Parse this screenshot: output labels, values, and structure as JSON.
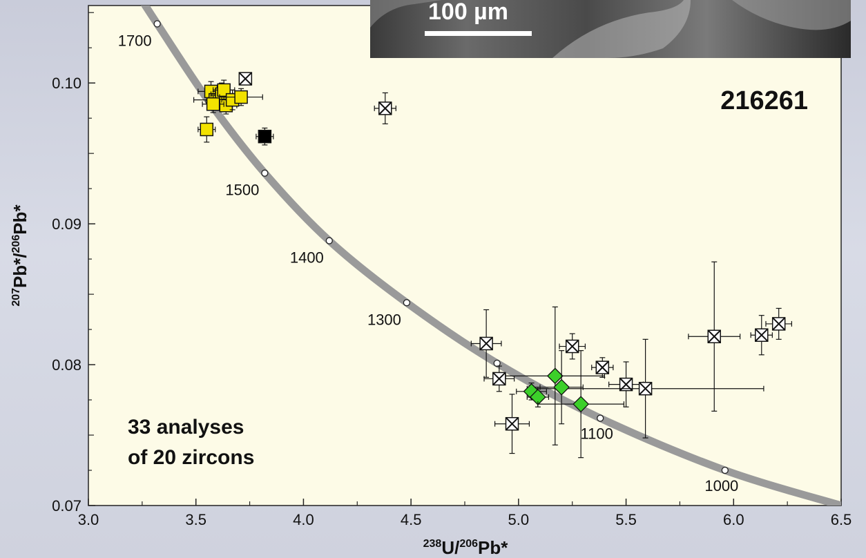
{
  "chart_data": {
    "type": "scatter",
    "title": "",
    "sample_id": "216261",
    "note_lines": [
      "33 analyses",
      "of 20 zircons"
    ],
    "scale_bar_label": "100 µm",
    "xlabel": {
      "pre1": "238",
      "mid1": "U/",
      "pre2": "206",
      "mid2": "Pb*"
    },
    "ylabel": {
      "pre1": "207",
      "mid1": "Pb*/",
      "pre2": "206",
      "mid2": "Pb*"
    },
    "xlim": [
      3.0,
      6.5
    ],
    "ylim": [
      0.07,
      0.1055
    ],
    "x_ticks": [
      "3.0",
      "3.5",
      "4.0",
      "4.5",
      "5.0",
      "5.5",
      "6.0",
      "6.5"
    ],
    "y_ticks": [
      "0.07",
      "0.08",
      "0.09",
      "0.10"
    ],
    "concordia_labels": [
      {
        "age": "1700",
        "x": 3.32,
        "y": 0.1042
      },
      {
        "age": "1500",
        "x": 3.82,
        "y": 0.0936
      },
      {
        "age": "1400",
        "x": 4.12,
        "y": 0.0888
      },
      {
        "age": "1300",
        "x": 4.48,
        "y": 0.0844
      },
      {
        "age": "1100",
        "x": 5.38,
        "y": 0.0762
      },
      {
        "age": "1000",
        "x": 5.96,
        "y": 0.0725
      }
    ],
    "concordia_points": [
      {
        "x": 3.32,
        "y": 0.1042
      },
      {
        "x": 3.56,
        "y": 0.0987
      },
      {
        "x": 3.82,
        "y": 0.0936
      },
      {
        "x": 4.12,
        "y": 0.0888
      },
      {
        "x": 4.48,
        "y": 0.0844
      },
      {
        "x": 4.9,
        "y": 0.0801
      },
      {
        "x": 5.38,
        "y": 0.0762
      },
      {
        "x": 5.96,
        "y": 0.0725
      }
    ],
    "concordia_curve": [
      {
        "x": 3.18,
        "y": 0.1075
      },
      {
        "x": 3.32,
        "y": 0.1042
      },
      {
        "x": 3.56,
        "y": 0.0987
      },
      {
        "x": 3.82,
        "y": 0.0936
      },
      {
        "x": 4.12,
        "y": 0.0888
      },
      {
        "x": 4.48,
        "y": 0.0844
      },
      {
        "x": 4.9,
        "y": 0.0801
      },
      {
        "x": 5.38,
        "y": 0.0762
      },
      {
        "x": 5.96,
        "y": 0.0725
      },
      {
        "x": 6.5,
        "y": 0.07
      }
    ],
    "series": [
      {
        "kind": "yellow-square",
        "color": "#f2e200",
        "points": [
          {
            "x": 3.55,
            "y": 0.0967,
            "xe": 0.04,
            "ye": 0.0009
          },
          {
            "x": 3.57,
            "y": 0.0994,
            "xe": 0.06,
            "ye": 0.0007
          },
          {
            "x": 3.59,
            "y": 0.0988,
            "xe": 0.1,
            "ye": 0.0006
          },
          {
            "x": 3.62,
            "y": 0.0992,
            "xe": 0.05,
            "ye": 0.0008
          },
          {
            "x": 3.63,
            "y": 0.0995,
            "xe": 0.05,
            "ye": 0.0007
          },
          {
            "x": 3.64,
            "y": 0.0984,
            "xe": 0.05,
            "ye": 0.0006
          },
          {
            "x": 3.67,
            "y": 0.0988,
            "xe": 0.05,
            "ye": 0.0007
          },
          {
            "x": 3.71,
            "y": 0.099,
            "xe": 0.1,
            "ye": 0.0006
          },
          {
            "x": 3.58,
            "y": 0.0985,
            "xe": 0.05,
            "ye": 0.0006
          }
        ]
      },
      {
        "kind": "black-square",
        "color": "#000000",
        "points": [
          {
            "x": 3.82,
            "y": 0.0962,
            "xe": 0.04,
            "ye": 0.0006
          }
        ]
      },
      {
        "kind": "crossed-square",
        "color": "#ffffff",
        "points": [
          {
            "x": 3.73,
            "y": 0.1003,
            "xe": 0.0,
            "ye": 0.0
          },
          {
            "x": 4.38,
            "y": 0.0982,
            "xe": 0.05,
            "ye": 0.0011
          },
          {
            "x": 4.85,
            "y": 0.0815,
            "xe": 0.07,
            "ye": 0.0024
          },
          {
            "x": 4.91,
            "y": 0.079,
            "xe": 0.07,
            "ye": 0.0009
          },
          {
            "x": 4.97,
            "y": 0.0758,
            "xe": 0.08,
            "ye": 0.0021
          },
          {
            "x": 5.25,
            "y": 0.0813,
            "xe": 0.06,
            "ye": 0.0009
          },
          {
            "x": 5.39,
            "y": 0.0798,
            "xe": 0.05,
            "ye": 0.0007
          },
          {
            "x": 5.5,
            "y": 0.0786,
            "xe": 0.08,
            "ye": 0.0016
          },
          {
            "x": 5.59,
            "y": 0.0783,
            "xe": 0.55,
            "ye": 0.0035
          },
          {
            "x": 5.91,
            "y": 0.082,
            "xe": 0.12,
            "ye": 0.0053
          },
          {
            "x": 6.13,
            "y": 0.0821,
            "xe": 0.05,
            "ye": 0.0014
          },
          {
            "x": 6.21,
            "y": 0.0829,
            "xe": 0.06,
            "ye": 0.0011
          }
        ]
      },
      {
        "kind": "green-diamond",
        "color": "#3ccf2a",
        "points": [
          {
            "x": 5.06,
            "y": 0.0781,
            "xe": 0.07,
            "ye": 0.0006
          },
          {
            "x": 5.09,
            "y": 0.0777,
            "xe": 0.05,
            "ye": 0.0007
          },
          {
            "x": 5.17,
            "y": 0.0792,
            "xe": 0.23,
            "ye": 0.0049
          },
          {
            "x": 5.2,
            "y": 0.0784,
            "xe": 0.1,
            "ye": 0.0026
          },
          {
            "x": 5.29,
            "y": 0.0772,
            "xe": 0.2,
            "ye": 0.0038
          }
        ]
      }
    ],
    "colors": {
      "plot_bg": "#fdfbe7",
      "concordia": "#9a9a9a"
    }
  }
}
